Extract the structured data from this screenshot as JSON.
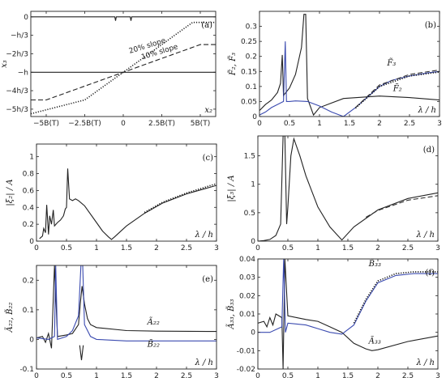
{
  "chart_data": [
    {
      "id": "a",
      "type": "line",
      "panel_label": "(a)",
      "xlabel": "x₂",
      "ylabel": "x₃",
      "xlim": [
        -6,
        6
      ],
      "ylim": [
        -1.8,
        0.1
      ],
      "x_ticks": [
        {
          "v": -5,
          "label": "−5B(T)"
        },
        {
          "v": -2.5,
          "label": "−2.5B(T)"
        },
        {
          "v": 0,
          "label": "0"
        },
        {
          "v": 2.5,
          "label": "2.5B(T)"
        },
        {
          "v": 5,
          "label": "5B(T)"
        }
      ],
      "y_ticks": [
        {
          "v": 0,
          "label": "0"
        },
        {
          "v": -0.333,
          "label": "−h/3"
        },
        {
          "v": -0.667,
          "label": "−2h/3"
        },
        {
          "v": -1,
          "label": "−h"
        },
        {
          "v": -1.333,
          "label": "−4h/3"
        },
        {
          "v": -1.667,
          "label": "−5h/3"
        }
      ],
      "annotations": [
        {
          "text": "20% slope",
          "x": 1.6,
          "y": -0.56
        },
        {
          "text": "10% slope",
          "x": 2.4,
          "y": -0.67
        }
      ],
      "series": [
        {
          "style": "solid",
          "x": [
            -6,
            6
          ],
          "y": [
            -1,
            -1
          ]
        },
        {
          "style": "solid",
          "x": [
            -6,
            -0.55,
            -0.5,
            -0.45,
            0.45,
            0.5,
            0.55,
            6
          ],
          "y": [
            0,
            0,
            -0.07,
            0,
            0,
            -0.07,
            0,
            0
          ]
        },
        {
          "style": "dashed",
          "x": [
            -6,
            -5,
            0,
            5,
            6
          ],
          "y": [
            -1.5,
            -1.5,
            -1,
            -0.5,
            -0.5
          ]
        },
        {
          "style": "dotted",
          "x": [
            -6,
            -2.5,
            0,
            4.5,
            6
          ],
          "y": [
            -1.75,
            -1.5,
            -1,
            -0.1,
            -0.1
          ]
        }
      ]
    },
    {
      "id": "b",
      "type": "line",
      "panel_label": "(b)",
      "xlabel": "λ / h",
      "ylabel": "F̃₂, F̃₃",
      "xlim": [
        0,
        3
      ],
      "ylim": [
        0,
        0.35
      ],
      "x_ticks": [
        {
          "v": 0,
          "label": "0"
        },
        {
          "v": 0.5,
          "label": "0.5"
        },
        {
          "v": 1,
          "label": "1"
        },
        {
          "v": 1.5,
          "label": "1.5"
        },
        {
          "v": 2,
          "label": "2"
        },
        {
          "v": 2.5,
          "label": "2.5"
        },
        {
          "v": 3,
          "label": "3"
        }
      ],
      "y_ticks": [
        {
          "v": 0,
          "label": "0"
        },
        {
          "v": 0.05,
          "label": "0.05"
        },
        {
          "v": 0.1,
          "label": "0.1"
        },
        {
          "v": 0.15,
          "label": "0.15"
        },
        {
          "v": 0.2,
          "label": "0.2"
        },
        {
          "v": 0.25,
          "label": "0.25"
        },
        {
          "v": 0.3,
          "label": "0.3"
        }
      ],
      "annotations": [
        {
          "text": "F̃₃",
          "x": 2.2,
          "y": 0.17
        },
        {
          "text": "F̃₂",
          "x": 2.3,
          "y": 0.085
        }
      ],
      "series": [
        {
          "style": "solid",
          "color": "#222",
          "x": [
            0,
            0.1,
            0.2,
            0.3,
            0.35,
            0.38,
            0.4,
            0.5,
            0.6,
            0.7,
            0.74,
            0.77,
            0.8,
            0.9,
            1.0,
            1.4,
            2.0,
            2.5,
            3.0
          ],
          "y": [
            0.02,
            0.04,
            0.055,
            0.08,
            0.11,
            0.205,
            0.07,
            0.095,
            0.14,
            0.23,
            0.34,
            0.34,
            0.06,
            0.005,
            0.03,
            0.06,
            0.068,
            0.063,
            0.055
          ]
        },
        {
          "style": "solid",
          "color": "#3b4bb0",
          "x": [
            0,
            0.1,
            0.2,
            0.3,
            0.4,
            0.43,
            0.45,
            0.5,
            0.6,
            0.8,
            1.0,
            1.2,
            1.4,
            1.6,
            1.8,
            2.0,
            2.2,
            2.5,
            2.8,
            3.0
          ],
          "y": [
            0.005,
            0.015,
            0.03,
            0.04,
            0.05,
            0.25,
            0.05,
            0.05,
            0.052,
            0.05,
            0.035,
            0.015,
            0.0,
            0.03,
            0.065,
            0.1,
            0.12,
            0.135,
            0.145,
            0.15
          ]
        },
        {
          "style": "dashed",
          "color": "#333",
          "x": [
            1.6,
            2.0,
            2.5,
            3.0
          ],
          "y": [
            0.03,
            0.105,
            0.14,
            0.155
          ]
        },
        {
          "style": "dotted",
          "color": "#111",
          "x": [
            1.6,
            2.0,
            2.5,
            3.0
          ],
          "y": [
            0.028,
            0.1,
            0.135,
            0.148
          ]
        }
      ]
    },
    {
      "id": "c",
      "type": "line",
      "panel_label": "(c)",
      "xlabel": "λ / h",
      "ylabel": "|ξ₂| / A",
      "xlim": [
        0,
        3
      ],
      "ylim": [
        0,
        1.15
      ],
      "x_ticks": [
        {
          "v": 0,
          "label": "0"
        },
        {
          "v": 0.5,
          "label": "0.5"
        },
        {
          "v": 1,
          "label": "1"
        },
        {
          "v": 1.5,
          "label": "1.5"
        },
        {
          "v": 2,
          "label": "2"
        },
        {
          "v": 2.5,
          "label": "2.5"
        },
        {
          "v": 3,
          "label": "3"
        }
      ],
      "y_ticks": [
        {
          "v": 0,
          "label": "0"
        },
        {
          "v": 0.2,
          "label": "0.2"
        },
        {
          "v": 0.4,
          "label": "0.4"
        },
        {
          "v": 0.6,
          "label": "0.6"
        },
        {
          "v": 0.8,
          "label": "0.8"
        },
        {
          "v": 1,
          "label": "1"
        }
      ],
      "annotations": [],
      "series": [
        {
          "style": "solid",
          "color": "#222",
          "x": [
            0.05,
            0.1,
            0.12,
            0.15,
            0.17,
            0.2,
            0.22,
            0.25,
            0.28,
            0.3,
            0.35,
            0.4,
            0.45,
            0.48,
            0.5,
            0.52,
            0.55,
            0.6,
            0.65,
            0.7,
            0.8,
            1.0,
            1.1,
            1.2,
            1.25,
            1.3,
            1.5,
            1.8,
            2.1,
            2.5,
            3.0
          ],
          "y": [
            0.03,
            0.06,
            0.15,
            0.1,
            0.43,
            0.08,
            0.3,
            0.2,
            0.37,
            0.18,
            0.22,
            0.25,
            0.3,
            0.38,
            0.4,
            0.86,
            0.5,
            0.48,
            0.5,
            0.48,
            0.42,
            0.22,
            0.12,
            0.05,
            0.02,
            0.05,
            0.18,
            0.33,
            0.45,
            0.56,
            0.66
          ]
        },
        {
          "style": "dotted",
          "color": "#111",
          "x": [
            1.8,
            2.1,
            2.5,
            3.0
          ],
          "y": [
            0.34,
            0.46,
            0.57,
            0.68
          ]
        }
      ]
    },
    {
      "id": "d",
      "type": "line",
      "panel_label": "(d)",
      "xlabel": "λ / h",
      "ylabel": "|ξ₃| / A",
      "xlim": [
        0,
        3
      ],
      "ylim": [
        0,
        1.85
      ],
      "x_ticks": [
        {
          "v": 0,
          "label": "0"
        },
        {
          "v": 0.5,
          "label": "0.5"
        },
        {
          "v": 1,
          "label": "1"
        },
        {
          "v": 1.5,
          "label": "1.5"
        },
        {
          "v": 2,
          "label": "2"
        },
        {
          "v": 2.5,
          "label": "2.5"
        },
        {
          "v": 3,
          "label": "3"
        }
      ],
      "y_ticks": [
        {
          "v": 0,
          "label": "0"
        },
        {
          "v": 0.5,
          "label": "0.5"
        },
        {
          "v": 1,
          "label": "1"
        },
        {
          "v": 1.5,
          "label": "1.5"
        }
      ],
      "annotations": [],
      "series": [
        {
          "style": "solid",
          "color": "#222",
          "x": [
            0,
            0.1,
            0.2,
            0.3,
            0.38,
            0.42,
            0.45,
            0.48,
            0.5,
            0.55,
            0.6,
            0.7,
            0.8,
            1.0,
            1.2,
            1.4,
            1.6,
            2.0,
            2.5,
            3.0
          ],
          "y": [
            0,
            0.01,
            0.03,
            0.1,
            0.3,
            1.85,
            1.85,
            0.3,
            0.6,
            1.5,
            1.8,
            1.5,
            1.15,
            0.6,
            0.25,
            0.02,
            0.25,
            0.55,
            0.75,
            0.85
          ]
        },
        {
          "style": "dashed",
          "color": "#333",
          "x": [
            1.8,
            2.0,
            2.5,
            3.0
          ],
          "y": [
            0.42,
            0.54,
            0.72,
            0.8
          ]
        }
      ]
    },
    {
      "id": "e",
      "type": "line",
      "panel_label": "(e)",
      "xlabel": "λ / h",
      "ylabel": "Ã₂₂, B̃₂₂",
      "xlim": [
        0,
        3
      ],
      "ylim": [
        -0.1,
        0.25
      ],
      "x_ticks": [
        {
          "v": 0,
          "label": "0"
        },
        {
          "v": 0.5,
          "label": "0.5"
        },
        {
          "v": 1,
          "label": "1"
        },
        {
          "v": 1.5,
          "label": "1.5"
        },
        {
          "v": 2,
          "label": "2"
        },
        {
          "v": 2.5,
          "label": "2.5"
        },
        {
          "v": 3,
          "label": "3"
        }
      ],
      "y_ticks": [
        {
          "v": -0.1,
          "label": "-0.1"
        },
        {
          "v": 0,
          "label": "0"
        },
        {
          "v": 0.1,
          "label": "0.1"
        },
        {
          "v": 0.2,
          "label": "0.2"
        }
      ],
      "annotations": [
        {
          "text": "Ã₂₂",
          "x": 1.95,
          "y": 0.05
        },
        {
          "text": "B̃₂₂",
          "x": 1.95,
          "y": -0.025
        }
      ],
      "series": [
        {
          "style": "solid",
          "color": "#222",
          "x": [
            0,
            0.1,
            0.15,
            0.2,
            0.25,
            0.3,
            0.35,
            0.5,
            0.6,
            0.7,
            0.73,
            0.76,
            0.8,
            0.85,
            0.9,
            1.0,
            1.5,
            2.0,
            3.0
          ],
          "y": [
            0.005,
            0.01,
            -0.01,
            0.02,
            -0.03,
            0.25,
            0.01,
            0.015,
            0.02,
            0.05,
            0.12,
            0.18,
            0.12,
            0.07,
            0.05,
            0.04,
            0.03,
            0.028,
            0.027
          ]
        },
        {
          "style": "solid",
          "color": "#3b4bb0",
          "x": [
            0,
            0.2,
            0.3,
            0.32,
            0.35,
            0.5,
            0.6,
            0.7,
            0.74,
            0.77,
            0.8,
            0.9,
            1.0,
            1.5,
            2.0,
            3.0
          ],
          "y": [
            0.005,
            0.0,
            0.01,
            0.25,
            0.0,
            0.01,
            0.03,
            0.08,
            0.25,
            0.25,
            0.05,
            0.01,
            0.0,
            -0.005,
            -0.005,
            -0.005
          ]
        },
        {
          "style": "solid",
          "color": "#222",
          "x": [
            0.72,
            0.75,
            0.78
          ],
          "y": [
            -0.02,
            -0.07,
            -0.02
          ]
        }
      ]
    },
    {
      "id": "f",
      "type": "line",
      "panel_label": "(f)",
      "xlabel": "λ / h",
      "ylabel": "Ã₃₃, B̃₃₃",
      "xlim": [
        0,
        3
      ],
      "ylim": [
        -0.02,
        0.04
      ],
      "x_ticks": [
        {
          "v": 0,
          "label": "0"
        },
        {
          "v": 0.5,
          "label": "0.5"
        },
        {
          "v": 1,
          "label": "1"
        },
        {
          "v": 1.5,
          "label": "1.5"
        },
        {
          "v": 2,
          "label": "2"
        },
        {
          "v": 2.5,
          "label": "2.5"
        },
        {
          "v": 3,
          "label": "3"
        }
      ],
      "y_ticks": [
        {
          "v": -0.02,
          "label": "-0.02"
        },
        {
          "v": -0.01,
          "label": "-0.01"
        },
        {
          "v": 0,
          "label": "0"
        },
        {
          "v": 0.01,
          "label": "0.01"
        },
        {
          "v": 0.02,
          "label": "0.02"
        },
        {
          "v": 0.03,
          "label": "0.03"
        },
        {
          "v": 0.04,
          "label": "0.04"
        }
      ],
      "annotations": [
        {
          "text": "B̃₃₃",
          "x": 1.95,
          "y": 0.036
        },
        {
          "text": "Ã₃₃",
          "x": 1.95,
          "y": -0.006
        }
      ],
      "series": [
        {
          "style": "solid",
          "color": "#222",
          "x": [
            0,
            0.1,
            0.15,
            0.2,
            0.25,
            0.3,
            0.4,
            0.42,
            0.45,
            0.5,
            0.8,
            1.0,
            1.2,
            1.4,
            1.6,
            1.8,
            1.9,
            2.0,
            2.5,
            3.0
          ],
          "y": [
            0.005,
            0.006,
            0.003,
            0.008,
            0.004,
            0.01,
            0.008,
            -0.02,
            0.04,
            0.009,
            0.007,
            0.006,
            0.003,
            0.0,
            -0.006,
            -0.009,
            -0.01,
            -0.0095,
            -0.005,
            -0.002
          ]
        },
        {
          "style": "solid",
          "color": "#3b4bb0",
          "x": [
            0,
            0.2,
            0.4,
            0.43,
            0.46,
            0.5,
            0.8,
            1.0,
            1.2,
            1.4,
            1.6,
            1.8,
            2.0,
            2.3,
            2.6,
            3.0
          ],
          "y": [
            0.0,
            0.0,
            0.003,
            0.04,
            0.0,
            0.005,
            0.004,
            0.002,
            0.0,
            -0.001,
            0.004,
            0.017,
            0.027,
            0.031,
            0.032,
            0.032
          ]
        },
        {
          "style": "dotted",
          "color": "#111",
          "x": [
            1.6,
            1.8,
            2.0,
            2.3,
            2.6,
            3.0
          ],
          "y": [
            0.005,
            0.018,
            0.028,
            0.032,
            0.033,
            0.033
          ]
        }
      ]
    }
  ]
}
